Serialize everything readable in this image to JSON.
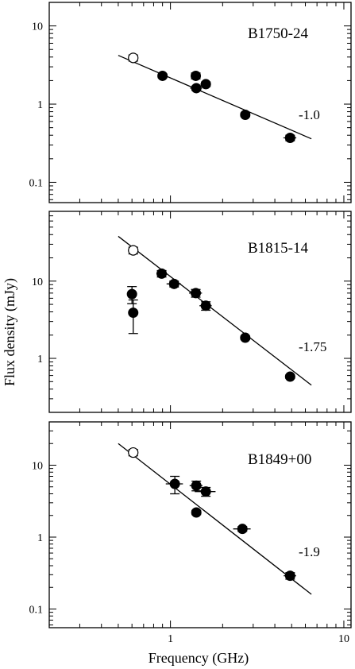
{
  "chart_data": [
    {
      "type": "scatter",
      "panel_label": "B1750-24",
      "slope_label": "-1.0",
      "xscale": "log",
      "yscale": "log",
      "xlim": [
        0.2,
        11
      ],
      "ylim": [
        0.055,
        20
      ],
      "yticks": [
        {
          "value": 0.1,
          "label": "0.1"
        },
        {
          "value": 1,
          "label": "1"
        },
        {
          "value": 10,
          "label": "10"
        }
      ],
      "fit_line": {
        "x": [
          0.5,
          6.5
        ],
        "y": [
          4.2,
          0.36
        ]
      },
      "series": [
        {
          "marker": "open",
          "points": [
            {
              "x": 0.61,
              "y": 3.9,
              "yerr": 0.35,
              "xerr": 0.04
            }
          ]
        },
        {
          "marker": "filled",
          "points": [
            {
              "x": 0.9,
              "y": 2.3,
              "yerr": 0.12,
              "xerr": 0.04
            },
            {
              "x": 1.4,
              "y": 2.3,
              "yerr": 0.2,
              "xerr": 0.07
            },
            {
              "x": 1.41,
              "y": 1.6,
              "yerr": 0.1,
              "xerr": 0.11
            },
            {
              "x": 1.6,
              "y": 1.8,
              "yerr": 0.12,
              "xerr": 0.11
            },
            {
              "x": 2.7,
              "y": 0.73,
              "yerr": 0.04,
              "xerr": 0.05
            },
            {
              "x": 4.9,
              "y": 0.37,
              "yerr": 0.03,
              "xerr": 0.42
            }
          ]
        }
      ]
    },
    {
      "type": "scatter",
      "panel_label": "B1815-14",
      "slope_label": "-1.75",
      "xscale": "log",
      "yscale": "log",
      "xlim": [
        0.2,
        11
      ],
      "ylim": [
        0.2,
        80
      ],
      "yticks": [
        {
          "value": 1,
          "label": "1"
        },
        {
          "value": 10,
          "label": "10"
        }
      ],
      "fit_line": {
        "x": [
          0.5,
          6.5
        ],
        "y": [
          38,
          0.45
        ]
      },
      "series": [
        {
          "marker": "open",
          "points": [
            {
              "x": 0.61,
              "y": 25,
              "yerr": 2.5,
              "xerr": 0.04
            }
          ]
        },
        {
          "marker": "filled",
          "points": [
            {
              "x": 0.6,
              "y": 6.8,
              "yerr": 1.7,
              "xerr": 0.03
            },
            {
              "x": 0.61,
              "y": 3.9,
              "yerr": 1.8,
              "xerr": 0.0
            },
            {
              "x": 0.89,
              "y": 12.5,
              "yerr": 1.2,
              "xerr": 0.06
            },
            {
              "x": 1.05,
              "y": 9.2,
              "yerr": 0.8,
              "xerr": 0.1
            },
            {
              "x": 1.4,
              "y": 7.0,
              "yerr": 0.8,
              "xerr": 0.12
            },
            {
              "x": 1.6,
              "y": 4.8,
              "yerr": 0.6,
              "xerr": 0.13
            },
            {
              "x": 2.7,
              "y": 1.85,
              "yerr": 0.1,
              "xerr": 0.0
            },
            {
              "x": 4.9,
              "y": 0.58,
              "yerr": 0.03,
              "xerr": 0.0
            }
          ]
        }
      ]
    },
    {
      "type": "scatter",
      "panel_label": "B1849+00",
      "slope_label": "-1.9",
      "xscale": "log",
      "yscale": "log",
      "xlim": [
        0.2,
        11
      ],
      "ylim": [
        0.055,
        40
      ],
      "yticks": [
        {
          "value": 0.1,
          "label": "0.1"
        },
        {
          "value": 1,
          "label": "1"
        },
        {
          "value": 10,
          "label": "10"
        }
      ],
      "xticks": [
        {
          "value": 1,
          "label": "1"
        },
        {
          "value": 10,
          "label": "10"
        }
      ],
      "xlabel": "Frequency (GHz)",
      "fit_line": {
        "x": [
          0.5,
          6.5
        ],
        "y": [
          20,
          0.16
        ]
      },
      "series": [
        {
          "marker": "open",
          "points": [
            {
              "x": 0.61,
              "y": 15,
              "yerr": 1.5,
              "xerr": 0.04
            }
          ]
        },
        {
          "marker": "filled",
          "points": [
            {
              "x": 1.06,
              "y": 5.5,
              "yerr": 1.5,
              "xerr": 0.12
            },
            {
              "x": 1.41,
              "y": 5.2,
              "yerr": 0.8,
              "xerr": 0.12
            },
            {
              "x": 1.6,
              "y": 4.3,
              "yerr": 0.6,
              "xerr": 0.22
            },
            {
              "x": 1.41,
              "y": 2.2,
              "yerr": 0.15,
              "xerr": 0.0
            },
            {
              "x": 2.6,
              "y": 1.3,
              "yerr": 0.1,
              "xerr": 0.3
            },
            {
              "x": 4.9,
              "y": 0.29,
              "yerr": 0.03,
              "xerr": 0.4
            }
          ]
        }
      ]
    }
  ],
  "shared_ylabel": "Flux density (mJy)"
}
